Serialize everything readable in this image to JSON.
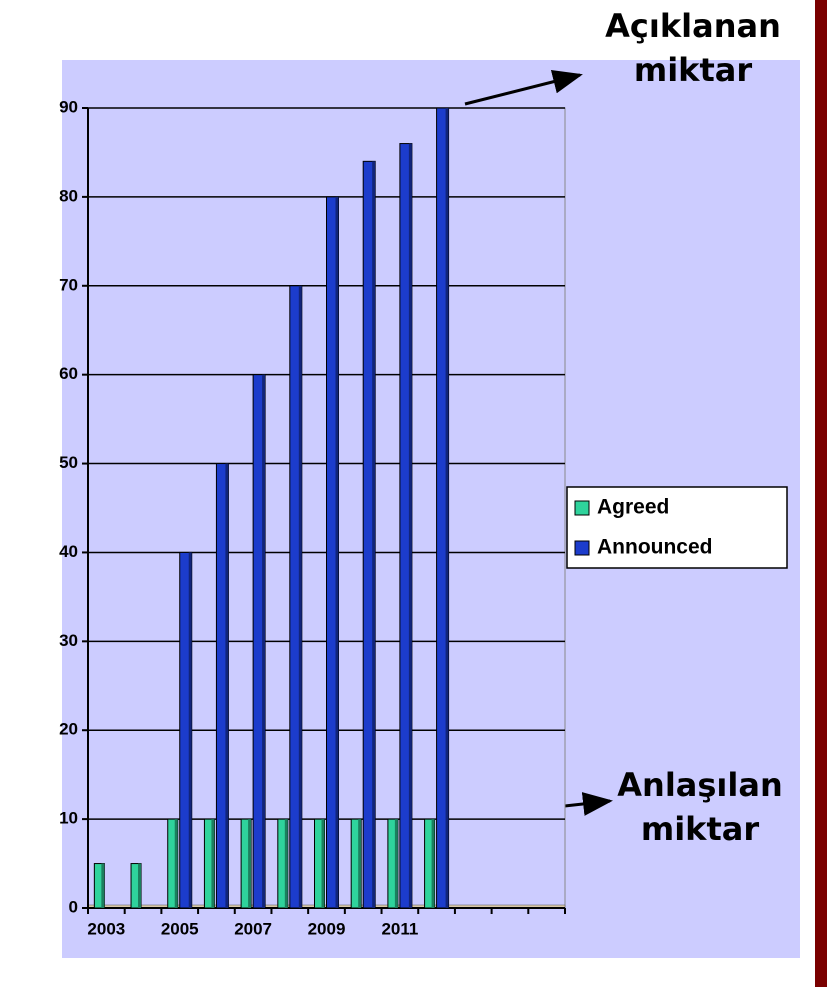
{
  "chart_data": {
    "type": "bar",
    "categories": [
      "2003",
      null,
      "2005",
      null,
      "2007",
      null,
      "2009",
      null,
      "2011",
      null,
      null,
      null,
      null
    ],
    "series": [
      {
        "name": "Agreed",
        "color": "#2fd39c",
        "values": [
          5,
          5,
          10,
          10,
          10,
          10,
          10,
          10,
          10,
          10,
          null,
          null,
          null
        ]
      },
      {
        "name": "Announced",
        "color": "#1c3ccc",
        "values": [
          null,
          null,
          40,
          50,
          60,
          70,
          80,
          84,
          86,
          90,
          null,
          null,
          null
        ]
      }
    ],
    "ylim": [
      0,
      90
    ],
    "yticks": [
      0,
      10,
      20,
      30,
      40,
      50,
      60,
      70,
      80,
      90
    ],
    "grid": true,
    "legend": "right",
    "annotations": [
      {
        "lines": [
          "Açıklanan",
          "miktar"
        ]
      },
      {
        "lines": [
          "Anlaşılan",
          "miktar"
        ]
      }
    ]
  }
}
